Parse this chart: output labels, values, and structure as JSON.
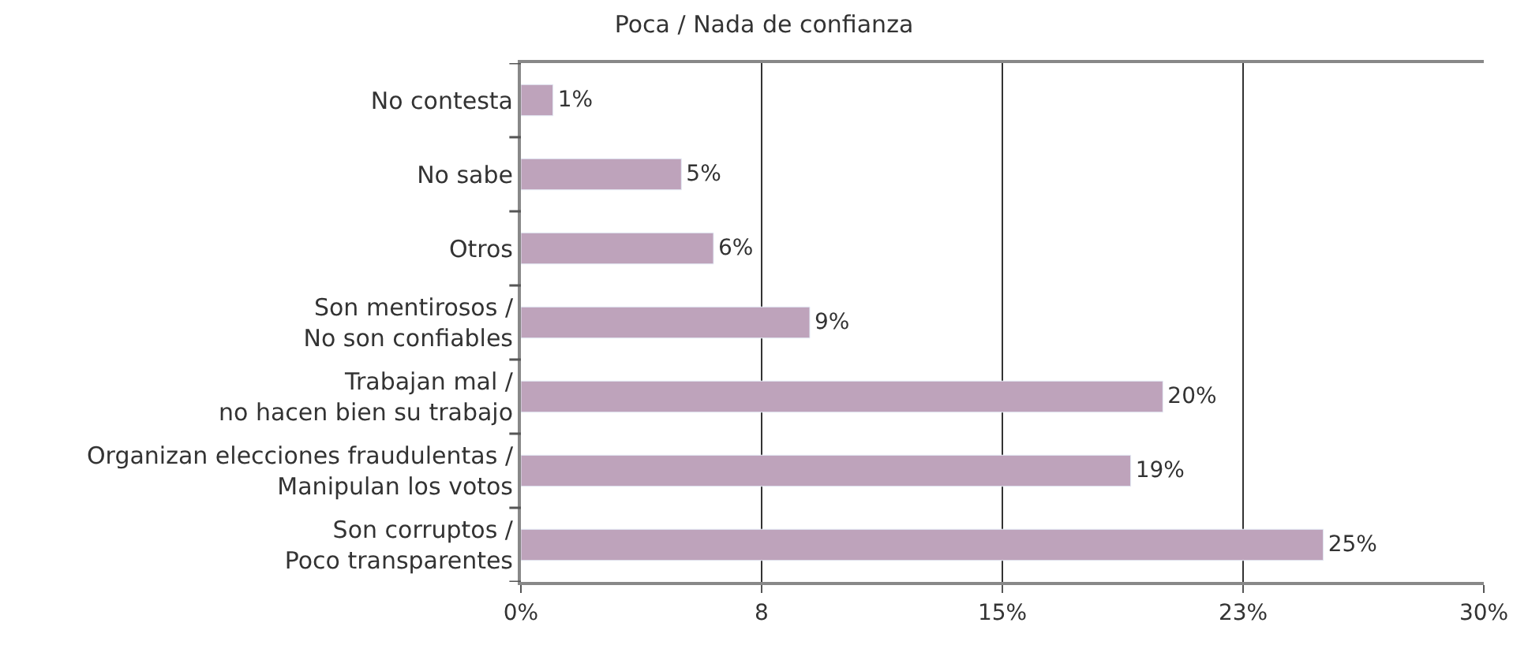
{
  "chart_data": {
    "type": "bar",
    "orientation": "horizontal",
    "title": "Poca / Nada de confianza",
    "categories": [
      "No contesta",
      "No sabe",
      "Otros",
      "Son mentirosos /\nNo son confiables",
      "Trabajan mal /\nno hacen bien su trabajo",
      "Organizan elecciones fraudulentas /\nManipulan los votos",
      "Son corruptos /\nPoco transparentes"
    ],
    "values": [
      1,
      5,
      6,
      9,
      20,
      19,
      25
    ],
    "value_labels": [
      "1%",
      "5%",
      "6%",
      "9%",
      "20%",
      "19%",
      "25%"
    ],
    "color": "#bea3bb",
    "xlim": [
      0,
      30
    ],
    "xticks": [
      {
        "value": 0,
        "label": "0%"
      },
      {
        "value": 7.5,
        "label": "8"
      },
      {
        "value": 15,
        "label": "15%"
      },
      {
        "value": 22.5,
        "label": "23%"
      },
      {
        "value": 30,
        "label": "30%"
      }
    ],
    "grid": "x",
    "legend": false
  }
}
